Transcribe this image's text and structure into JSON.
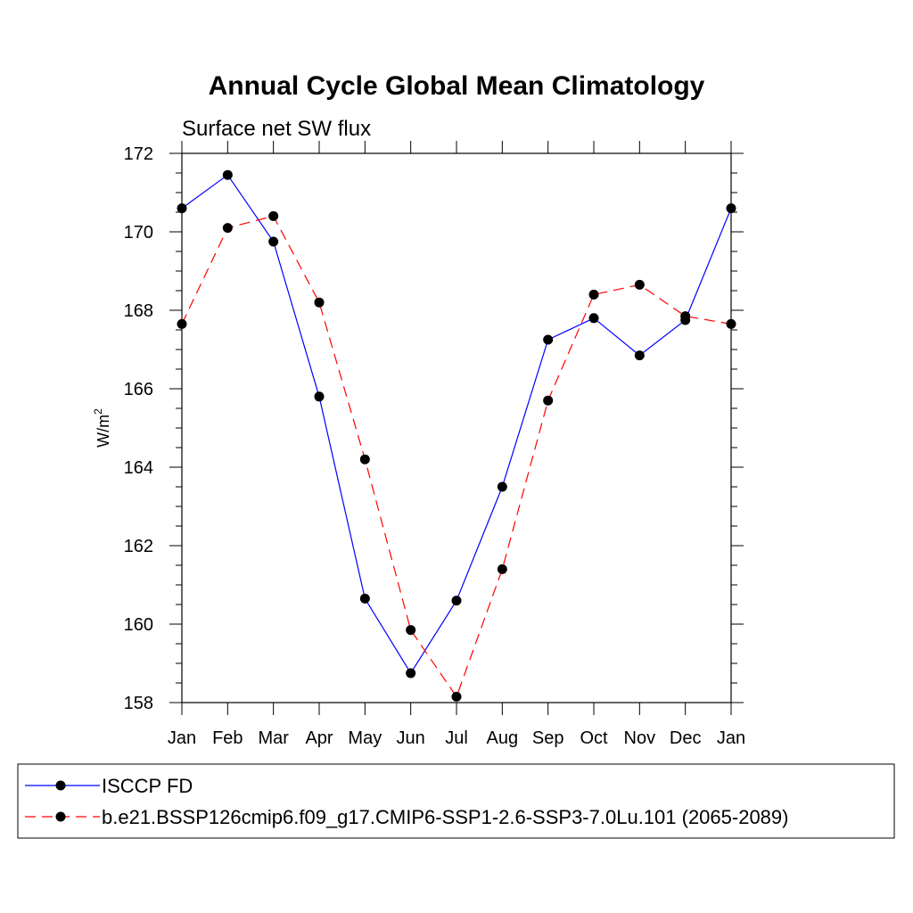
{
  "chart_data": {
    "type": "line",
    "title": "Annual Cycle Global Mean Climatology",
    "subtitle": "Surface net SW flux",
    "ylabel": "W/m",
    "ylabel_superscript": "2",
    "xlabel": "",
    "categories": [
      "Jan",
      "Feb",
      "Mar",
      "Apr",
      "May",
      "Jun",
      "Jul",
      "Aug",
      "Sep",
      "Oct",
      "Nov",
      "Dec",
      "Jan"
    ],
    "ylim": [
      158,
      172
    ],
    "yticks": [
      "158",
      "160",
      "162",
      "164",
      "166",
      "168",
      "170",
      "172"
    ],
    "grid": false,
    "legend_position": "bottom",
    "series": [
      {
        "name": "ISCCP FD",
        "color": "#0000ff",
        "style": "solid",
        "values": [
          170.6,
          171.45,
          169.75,
          165.8,
          160.65,
          158.75,
          160.6,
          163.5,
          167.25,
          167.8,
          166.85,
          167.75,
          170.6
        ]
      },
      {
        "name": "b.e21.BSSP126cmip6.f09_g17.CMIP6-SSP1-2.6-SSP3-7.0Lu.101 (2065-2089)",
        "color": "#ff0000",
        "style": "dashed",
        "values": [
          167.65,
          170.1,
          170.4,
          168.2,
          164.2,
          159.85,
          158.15,
          161.4,
          165.7,
          168.4,
          168.65,
          167.85,
          167.65
        ]
      }
    ]
  }
}
